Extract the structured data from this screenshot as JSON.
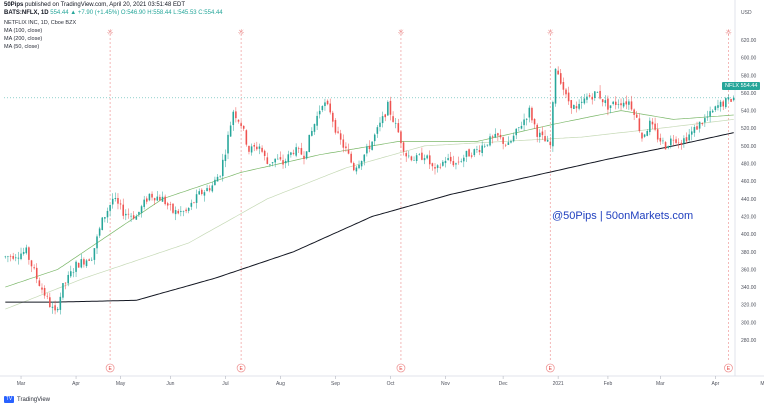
{
  "header": {
    "publisher": "50Pips",
    "published_text": "published on TradingView.com, April 20, 2021 03:51:48 EDT",
    "symbol_line": "BATS:NFLX, 1D",
    "ohlc_text": "554.44 ▲ +7.90 (+1.45%) O:546.90 H:558.44 L:545.53 C:554.44"
  },
  "legend": {
    "title": "NETFLIX INC, 1D, Cboe BZX",
    "items": [
      "MA (100, close)",
      "MA (200, close)",
      "MA (50, close)"
    ]
  },
  "watermark": "@50Pips  |  50onMarkets.com",
  "price_tag": {
    "symbol": "NFLX",
    "value": "554.44"
  },
  "currency_label": "USD",
  "footer": {
    "logo_text": "TV",
    "text": "TradingView"
  },
  "colors": {
    "up": "#26a69a",
    "down": "#ef5350",
    "ma50": "#7cb86a",
    "ma100": "#c5d9b5",
    "ma200": "#131722",
    "earnings_line": "#ef9a9a",
    "watermark": "#1f3fbf"
  },
  "earnings_marker": "E",
  "split_marker": "☼",
  "chart_data": {
    "type": "candlestick",
    "title": "NETFLIX INC, 1D, Cboe BZX",
    "ylim": [
      280,
      725
    ],
    "y_ticks": [
      280,
      300,
      320,
      340,
      360,
      380,
      400,
      420,
      440,
      460,
      480,
      500,
      520,
      540,
      560,
      580,
      600,
      620
    ],
    "x_tick_labels": [
      "Mar",
      "Apr",
      "May",
      "Jun",
      "Jul",
      "Aug",
      "Sep",
      "Oct",
      "Nov",
      "Dec",
      "2021",
      "Feb",
      "Mar",
      "Apr",
      "May"
    ],
    "x_tick_index": [
      6,
      27,
      44,
      63,
      84,
      105,
      126,
      147,
      168,
      190,
      211,
      230,
      250,
      271,
      290
    ],
    "earnings_index": [
      40,
      90,
      151,
      208,
      276
    ],
    "n_bars": 279,
    "close_anchors": [
      [
        0,
        374
      ],
      [
        8,
        380
      ],
      [
        12,
        350
      ],
      [
        17,
        320
      ],
      [
        19,
        310
      ],
      [
        22,
        340
      ],
      [
        27,
        365
      ],
      [
        33,
        375
      ],
      [
        37,
        415
      ],
      [
        41,
        440
      ],
      [
        45,
        425
      ],
      [
        50,
        420
      ],
      [
        55,
        445
      ],
      [
        60,
        440
      ],
      [
        64,
        425
      ],
      [
        69,
        425
      ],
      [
        74,
        445
      ],
      [
        79,
        455
      ],
      [
        82,
        470
      ],
      [
        84,
        495
      ],
      [
        87,
        540
      ],
      [
        90,
        525
      ],
      [
        93,
        495
      ],
      [
        97,
        500
      ],
      [
        100,
        480
      ],
      [
        103,
        485
      ],
      [
        106,
        480
      ],
      [
        110,
        495
      ],
      [
        114,
        490
      ],
      [
        118,
        525
      ],
      [
        121,
        550
      ],
      [
        124,
        540
      ],
      [
        127,
        510
      ],
      [
        130,
        495
      ],
      [
        133,
        475
      ],
      [
        137,
        490
      ],
      [
        140,
        505
      ],
      [
        144,
        530
      ],
      [
        146,
        545
      ],
      [
        150,
        515
      ],
      [
        153,
        490
      ],
      [
        157,
        485
      ],
      [
        160,
        490
      ],
      [
        164,
        470
      ],
      [
        168,
        485
      ],
      [
        172,
        480
      ],
      [
        176,
        490
      ],
      [
        180,
        495
      ],
      [
        184,
        505
      ],
      [
        188,
        510
      ],
      [
        192,
        500
      ],
      [
        196,
        520
      ],
      [
        200,
        540
      ],
      [
        203,
        515
      ],
      [
        206,
        505
      ],
      [
        208,
        500
      ],
      [
        210,
        590
      ],
      [
        212,
        575
      ],
      [
        214,
        555
      ],
      [
        218,
        540
      ],
      [
        222,
        555
      ],
      [
        226,
        560
      ],
      [
        230,
        545
      ],
      [
        234,
        550
      ],
      [
        238,
        550
      ],
      [
        240,
        540
      ],
      [
        243,
        510
      ],
      [
        246,
        525
      ],
      [
        249,
        510
      ],
      [
        252,
        500
      ],
      [
        255,
        510
      ],
      [
        258,
        505
      ],
      [
        262,
        515
      ],
      [
        265,
        525
      ],
      [
        269,
        535
      ],
      [
        272,
        545
      ],
      [
        275,
        550
      ],
      [
        278,
        554.44
      ]
    ],
    "ma50_anchors": [
      [
        0,
        340
      ],
      [
        20,
        360
      ],
      [
        60,
        440
      ],
      [
        90,
        470
      ],
      [
        120,
        490
      ],
      [
        150,
        505
      ],
      [
        180,
        505
      ],
      [
        210,
        525
      ],
      [
        235,
        540
      ],
      [
        255,
        530
      ],
      [
        278,
        535
      ]
    ],
    "ma100_anchors": [
      [
        0,
        315
      ],
      [
        30,
        350
      ],
      [
        70,
        390
      ],
      [
        100,
        440
      ],
      [
        130,
        475
      ],
      [
        160,
        500
      ],
      [
        190,
        505
      ],
      [
        220,
        510
      ],
      [
        250,
        520
      ],
      [
        278,
        530
      ]
    ],
    "ma200_anchors": [
      [
        0,
        323
      ],
      [
        20,
        323
      ],
      [
        50,
        325
      ],
      [
        80,
        350
      ],
      [
        110,
        380
      ],
      [
        140,
        420
      ],
      [
        170,
        445
      ],
      [
        200,
        465
      ],
      [
        230,
        485
      ],
      [
        255,
        500
      ],
      [
        278,
        515
      ]
    ]
  }
}
